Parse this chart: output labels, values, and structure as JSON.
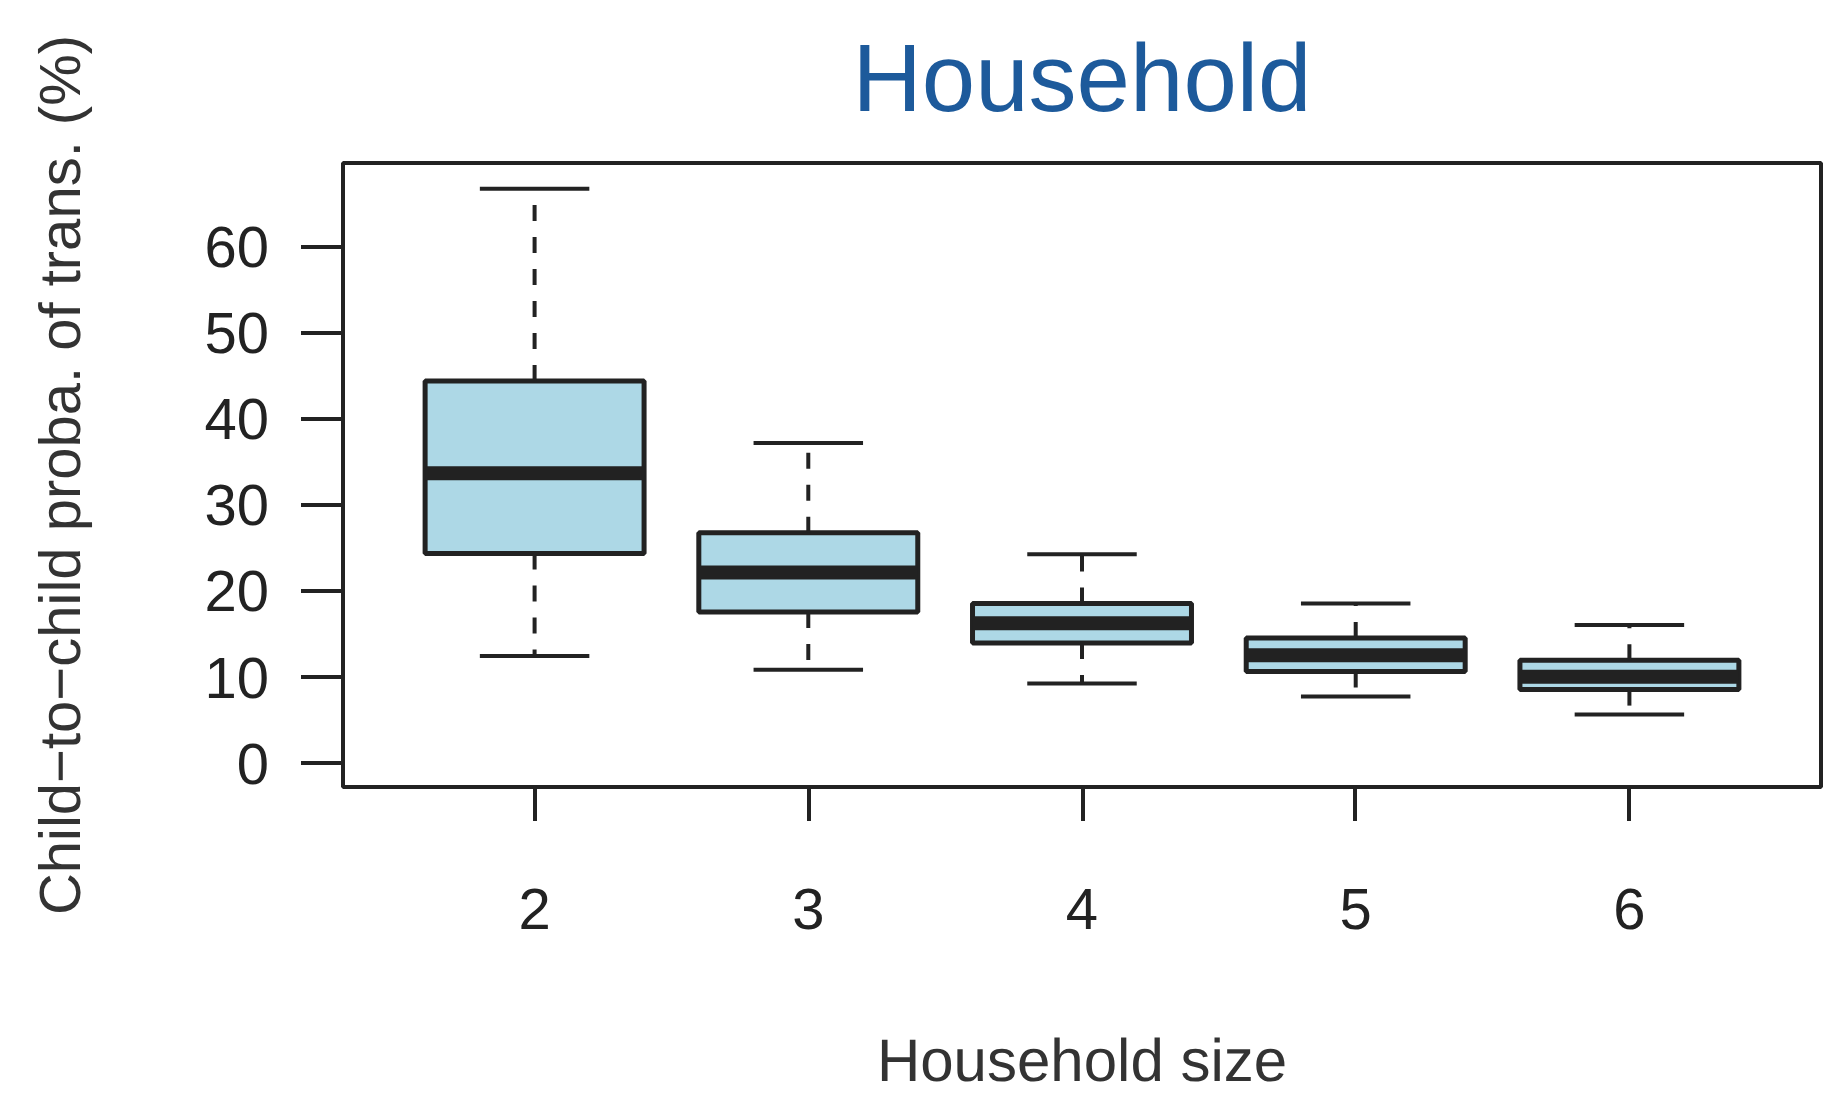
{
  "chart_data": {
    "type": "box",
    "title": "Household",
    "xlabel": "Household size",
    "ylabel": "Child−to−child proba. of trans. (%)",
    "categories": [
      "2",
      "3",
      "4",
      "5",
      "6"
    ],
    "color": "#add8e6",
    "ylim": [
      -2.7,
      69.7
    ],
    "yticks": [
      0,
      10,
      20,
      30,
      40,
      50,
      60
    ],
    "boxes": [
      {
        "low": 12.5,
        "q1": 24.4,
        "median": 33.7,
        "q3": 44.4,
        "high": 66.7
      },
      {
        "low": 10.9,
        "q1": 17.6,
        "median": 22.2,
        "q3": 26.8,
        "high": 37.2
      },
      {
        "low": 9.3,
        "q1": 14.0,
        "median": 16.3,
        "q3": 18.6,
        "high": 24.3
      },
      {
        "low": 7.8,
        "q1": 10.7,
        "median": 12.6,
        "q3": 14.6,
        "high": 18.6
      },
      {
        "low": 5.7,
        "q1": 8.6,
        "median": 10.1,
        "q3": 12.0,
        "high": 16.1
      }
    ]
  }
}
